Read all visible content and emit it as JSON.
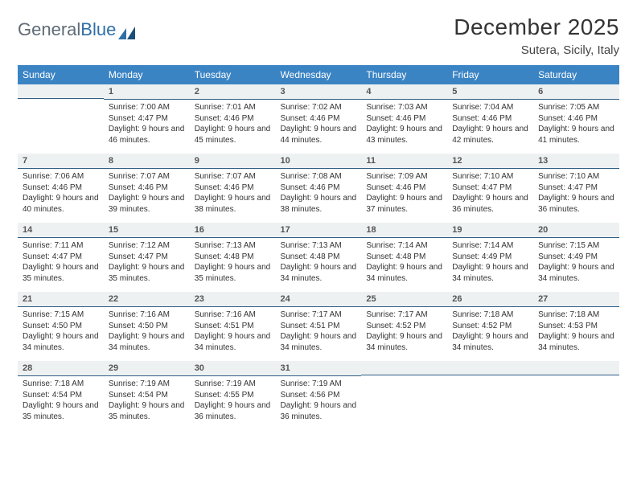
{
  "brand": {
    "part1": "General",
    "part2": "Blue"
  },
  "title": "December 2025",
  "subtitle": "Sutera, Sicily, Italy",
  "colors": {
    "header_bg": "#3b84c4",
    "header_text": "#ffffff",
    "daynum_bg": "#eef1f2",
    "daynum_border": "#2f5e84",
    "text": "#333333",
    "logo_gray": "#5f6b76",
    "logo_blue": "#2f6fa6",
    "page_bg": "#ffffff"
  },
  "weekdays": [
    "Sunday",
    "Monday",
    "Tuesday",
    "Wednesday",
    "Thursday",
    "Friday",
    "Saturday"
  ],
  "weeks": [
    [
      {
        "n": "",
        "sr": "",
        "ss": "",
        "dl": ""
      },
      {
        "n": "1",
        "sr": "7:00 AM",
        "ss": "4:47 PM",
        "dl": "9 hours and 46 minutes."
      },
      {
        "n": "2",
        "sr": "7:01 AM",
        "ss": "4:46 PM",
        "dl": "9 hours and 45 minutes."
      },
      {
        "n": "3",
        "sr": "7:02 AM",
        "ss": "4:46 PM",
        "dl": "9 hours and 44 minutes."
      },
      {
        "n": "4",
        "sr": "7:03 AM",
        "ss": "4:46 PM",
        "dl": "9 hours and 43 minutes."
      },
      {
        "n": "5",
        "sr": "7:04 AM",
        "ss": "4:46 PM",
        "dl": "9 hours and 42 minutes."
      },
      {
        "n": "6",
        "sr": "7:05 AM",
        "ss": "4:46 PM",
        "dl": "9 hours and 41 minutes."
      }
    ],
    [
      {
        "n": "7",
        "sr": "7:06 AM",
        "ss": "4:46 PM",
        "dl": "9 hours and 40 minutes."
      },
      {
        "n": "8",
        "sr": "7:07 AM",
        "ss": "4:46 PM",
        "dl": "9 hours and 39 minutes."
      },
      {
        "n": "9",
        "sr": "7:07 AM",
        "ss": "4:46 PM",
        "dl": "9 hours and 38 minutes."
      },
      {
        "n": "10",
        "sr": "7:08 AM",
        "ss": "4:46 PM",
        "dl": "9 hours and 38 minutes."
      },
      {
        "n": "11",
        "sr": "7:09 AM",
        "ss": "4:46 PM",
        "dl": "9 hours and 37 minutes."
      },
      {
        "n": "12",
        "sr": "7:10 AM",
        "ss": "4:47 PM",
        "dl": "9 hours and 36 minutes."
      },
      {
        "n": "13",
        "sr": "7:10 AM",
        "ss": "4:47 PM",
        "dl": "9 hours and 36 minutes."
      }
    ],
    [
      {
        "n": "14",
        "sr": "7:11 AM",
        "ss": "4:47 PM",
        "dl": "9 hours and 35 minutes."
      },
      {
        "n": "15",
        "sr": "7:12 AM",
        "ss": "4:47 PM",
        "dl": "9 hours and 35 minutes."
      },
      {
        "n": "16",
        "sr": "7:13 AM",
        "ss": "4:48 PM",
        "dl": "9 hours and 35 minutes."
      },
      {
        "n": "17",
        "sr": "7:13 AM",
        "ss": "4:48 PM",
        "dl": "9 hours and 34 minutes."
      },
      {
        "n": "18",
        "sr": "7:14 AM",
        "ss": "4:48 PM",
        "dl": "9 hours and 34 minutes."
      },
      {
        "n": "19",
        "sr": "7:14 AM",
        "ss": "4:49 PM",
        "dl": "9 hours and 34 minutes."
      },
      {
        "n": "20",
        "sr": "7:15 AM",
        "ss": "4:49 PM",
        "dl": "9 hours and 34 minutes."
      }
    ],
    [
      {
        "n": "21",
        "sr": "7:15 AM",
        "ss": "4:50 PM",
        "dl": "9 hours and 34 minutes."
      },
      {
        "n": "22",
        "sr": "7:16 AM",
        "ss": "4:50 PM",
        "dl": "9 hours and 34 minutes."
      },
      {
        "n": "23",
        "sr": "7:16 AM",
        "ss": "4:51 PM",
        "dl": "9 hours and 34 minutes."
      },
      {
        "n": "24",
        "sr": "7:17 AM",
        "ss": "4:51 PM",
        "dl": "9 hours and 34 minutes."
      },
      {
        "n": "25",
        "sr": "7:17 AM",
        "ss": "4:52 PM",
        "dl": "9 hours and 34 minutes."
      },
      {
        "n": "26",
        "sr": "7:18 AM",
        "ss": "4:52 PM",
        "dl": "9 hours and 34 minutes."
      },
      {
        "n": "27",
        "sr": "7:18 AM",
        "ss": "4:53 PM",
        "dl": "9 hours and 34 minutes."
      }
    ],
    [
      {
        "n": "28",
        "sr": "7:18 AM",
        "ss": "4:54 PM",
        "dl": "9 hours and 35 minutes."
      },
      {
        "n": "29",
        "sr": "7:19 AM",
        "ss": "4:54 PM",
        "dl": "9 hours and 35 minutes."
      },
      {
        "n": "30",
        "sr": "7:19 AM",
        "ss": "4:55 PM",
        "dl": "9 hours and 36 minutes."
      },
      {
        "n": "31",
        "sr": "7:19 AM",
        "ss": "4:56 PM",
        "dl": "9 hours and 36 minutes."
      },
      {
        "n": "",
        "sr": "",
        "ss": "",
        "dl": ""
      },
      {
        "n": "",
        "sr": "",
        "ss": "",
        "dl": ""
      },
      {
        "n": "",
        "sr": "",
        "ss": "",
        "dl": ""
      }
    ]
  ],
  "labels": {
    "sunrise": "Sunrise: ",
    "sunset": "Sunset: ",
    "daylight": "Daylight: "
  }
}
